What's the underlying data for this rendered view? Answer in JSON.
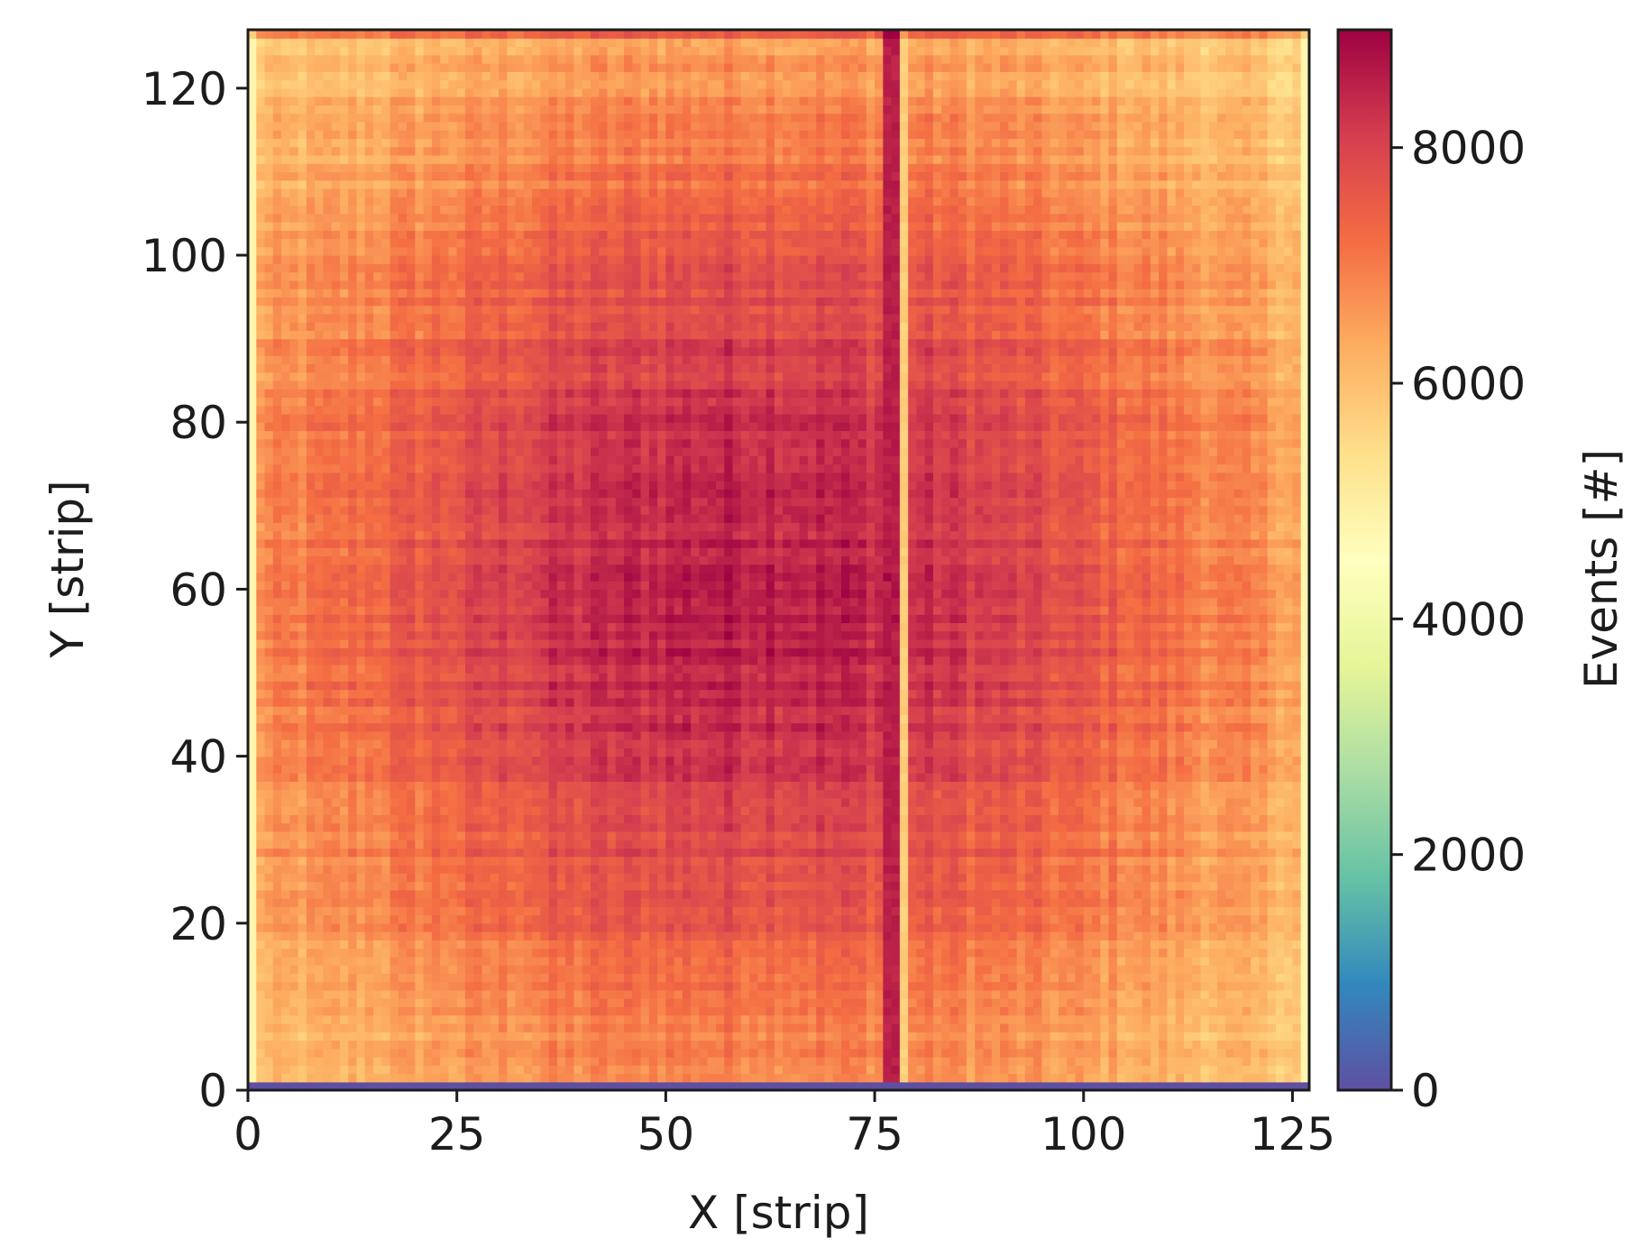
{
  "chart_data": {
    "type": "heatmap",
    "title": "",
    "xlabel": "X [strip]",
    "ylabel": "Y [strip]",
    "colorbar_label": "Events [#]",
    "colormap": "Spectral_r",
    "xlim": [
      0,
      127
    ],
    "ylim": [
      0,
      127
    ],
    "grid": false,
    "x_ticks": [
      0,
      25,
      50,
      75,
      100,
      125
    ],
    "x_tick_labels": [
      "0",
      "25",
      "50",
      "75",
      "100",
      "125"
    ],
    "y_ticks": [
      0,
      20,
      40,
      60,
      80,
      100,
      120
    ],
    "y_tick_labels": [
      "0",
      "20",
      "40",
      "60",
      "80",
      "100",
      "120"
    ],
    "colorbar_range": [
      0,
      9000
    ],
    "colorbar_ticks": [
      0,
      2000,
      4000,
      6000,
      8000
    ],
    "colorbar_tick_labels": [
      "0",
      "2000",
      "4000",
      "6000",
      "8000"
    ],
    "grid_size": [
      127,
      127
    ],
    "intensity_model": {
      "peak_center_x": 60,
      "peak_center_y": 60,
      "peak_value": 8600,
      "edge_value": 5000,
      "empty_rows_y": [
        0
      ],
      "empty_row_value": 0,
      "hot_column_x": [
        76,
        77
      ],
      "cold_column_x": [
        78
      ],
      "hot_row_y": [
        126
      ]
    }
  }
}
